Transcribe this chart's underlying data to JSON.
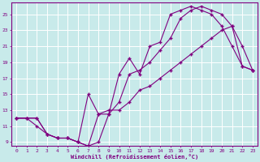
{
  "xlabel": "Windchill (Refroidissement éolien,°C)",
  "bg_color": "#c8eaea",
  "grid_color": "#ffffff",
  "line_color": "#800080",
  "xlim": [
    -0.5,
    23.5
  ],
  "ylim": [
    8.5,
    26.5
  ],
  "yticks": [
    9,
    11,
    13,
    15,
    17,
    19,
    21,
    23,
    25
  ],
  "xticks": [
    0,
    1,
    2,
    3,
    4,
    5,
    6,
    7,
    8,
    9,
    10,
    11,
    12,
    13,
    14,
    15,
    16,
    17,
    18,
    19,
    20,
    21,
    22,
    23
  ],
  "line1_x": [
    0,
    1,
    2,
    3,
    4,
    5,
    6,
    7,
    8,
    9,
    10,
    11,
    12,
    13,
    14,
    15,
    16,
    17,
    18,
    19,
    20,
    21,
    22,
    23
  ],
  "line1_y": [
    12,
    12,
    12,
    10,
    9.5,
    9.5,
    9,
    15,
    12.5,
    12.5,
    17.5,
    19.5,
    17.5,
    21,
    21.5,
    25,
    25.5,
    26,
    25.5,
    25,
    23.5,
    21,
    18.5,
    18
  ],
  "line2_x": [
    0,
    1,
    2,
    3,
    4,
    5,
    6,
    7,
    8,
    9,
    10,
    11,
    12,
    13,
    14,
    15,
    16,
    17,
    18,
    19,
    20,
    21,
    22,
    23
  ],
  "line2_y": [
    12,
    12,
    12,
    10,
    9.5,
    9.5,
    9,
    8.5,
    9,
    12.5,
    14,
    17.5,
    18,
    19,
    20.5,
    22,
    24.5,
    25.5,
    26,
    25.5,
    25,
    23.5,
    21,
    18
  ],
  "line3_x": [
    0,
    1,
    2,
    3,
    4,
    5,
    6,
    7,
    8,
    9,
    10,
    11,
    12,
    13,
    14,
    15,
    16,
    17,
    18,
    19,
    20,
    21,
    22,
    23
  ],
  "line3_y": [
    12,
    12,
    11,
    10,
    9.5,
    9.5,
    9,
    8.5,
    12.5,
    13,
    13,
    14,
    15.5,
    16,
    17,
    18,
    19,
    20,
    21,
    22,
    23,
    23.5,
    18.5,
    18
  ]
}
